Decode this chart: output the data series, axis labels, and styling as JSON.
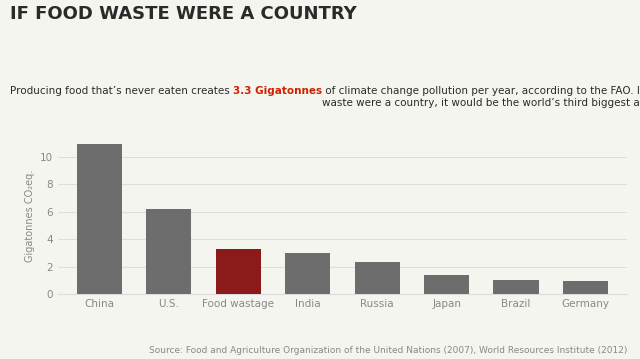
{
  "title": "IF FOOD WASTE WERE A COUNTRY",
  "subtitle_part1": "Producing food that’s never eaten creates ",
  "subtitle_highlight": "3.3 Gigatonnes",
  "subtitle_part2": " of climate change pollution per year, according to the FAO. If all of that food\nwaste were a country, it would be the world’s third biggest annual greenhouse gas emitter.",
  "source": "Source: Food and Agriculture Organization of the United Nations (2007), World Resources Institute (2012)",
  "categories": [
    "China",
    "U.S.",
    "Food wastage",
    "India",
    "Russia",
    "Japan",
    "Brazil",
    "Germany"
  ],
  "values": [
    10.95,
    6.25,
    3.3,
    3.0,
    2.35,
    1.4,
    1.05,
    0.95
  ],
  "bar_colors": [
    "#6d6d6d",
    "#6d6d6d",
    "#8b1a1a",
    "#6d6d6d",
    "#6d6d6d",
    "#6d6d6d",
    "#6d6d6d",
    "#6d6d6d"
  ],
  "ylabel": "Gigatonnes CO₂eq.",
  "ylim": [
    0,
    11.5
  ],
  "yticks": [
    0,
    2,
    4,
    6,
    8,
    10
  ],
  "background_color": "#f5f5f0",
  "title_fontsize": 13,
  "subtitle_fontsize": 7.5,
  "axis_label_fontsize": 7,
  "tick_fontsize": 7.5,
  "source_fontsize": 6.5,
  "highlight_color": "#cc2200",
  "text_color": "#2a2a2a",
  "tick_label_color": "#888888",
  "grid_color": "#dddddd"
}
